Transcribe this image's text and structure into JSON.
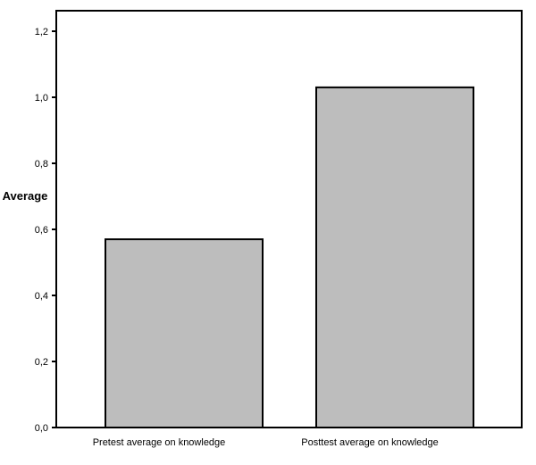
{
  "chart_data": {
    "type": "bar",
    "categories": [
      "Pretest average on knowledge",
      "Posttest average on knowledge"
    ],
    "values": [
      0.57,
      1.03
    ],
    "title": "",
    "xlabel": "",
    "ylabel": "Average",
    "ylim": [
      0,
      1.2
    ],
    "yticks": [
      "0,0",
      "0,2",
      "0,4",
      "0,6",
      "0,8",
      "1,0",
      "1,2"
    ],
    "grid": false,
    "bar_color": "#bdbdbd",
    "bar_edge_color": "#000000"
  }
}
